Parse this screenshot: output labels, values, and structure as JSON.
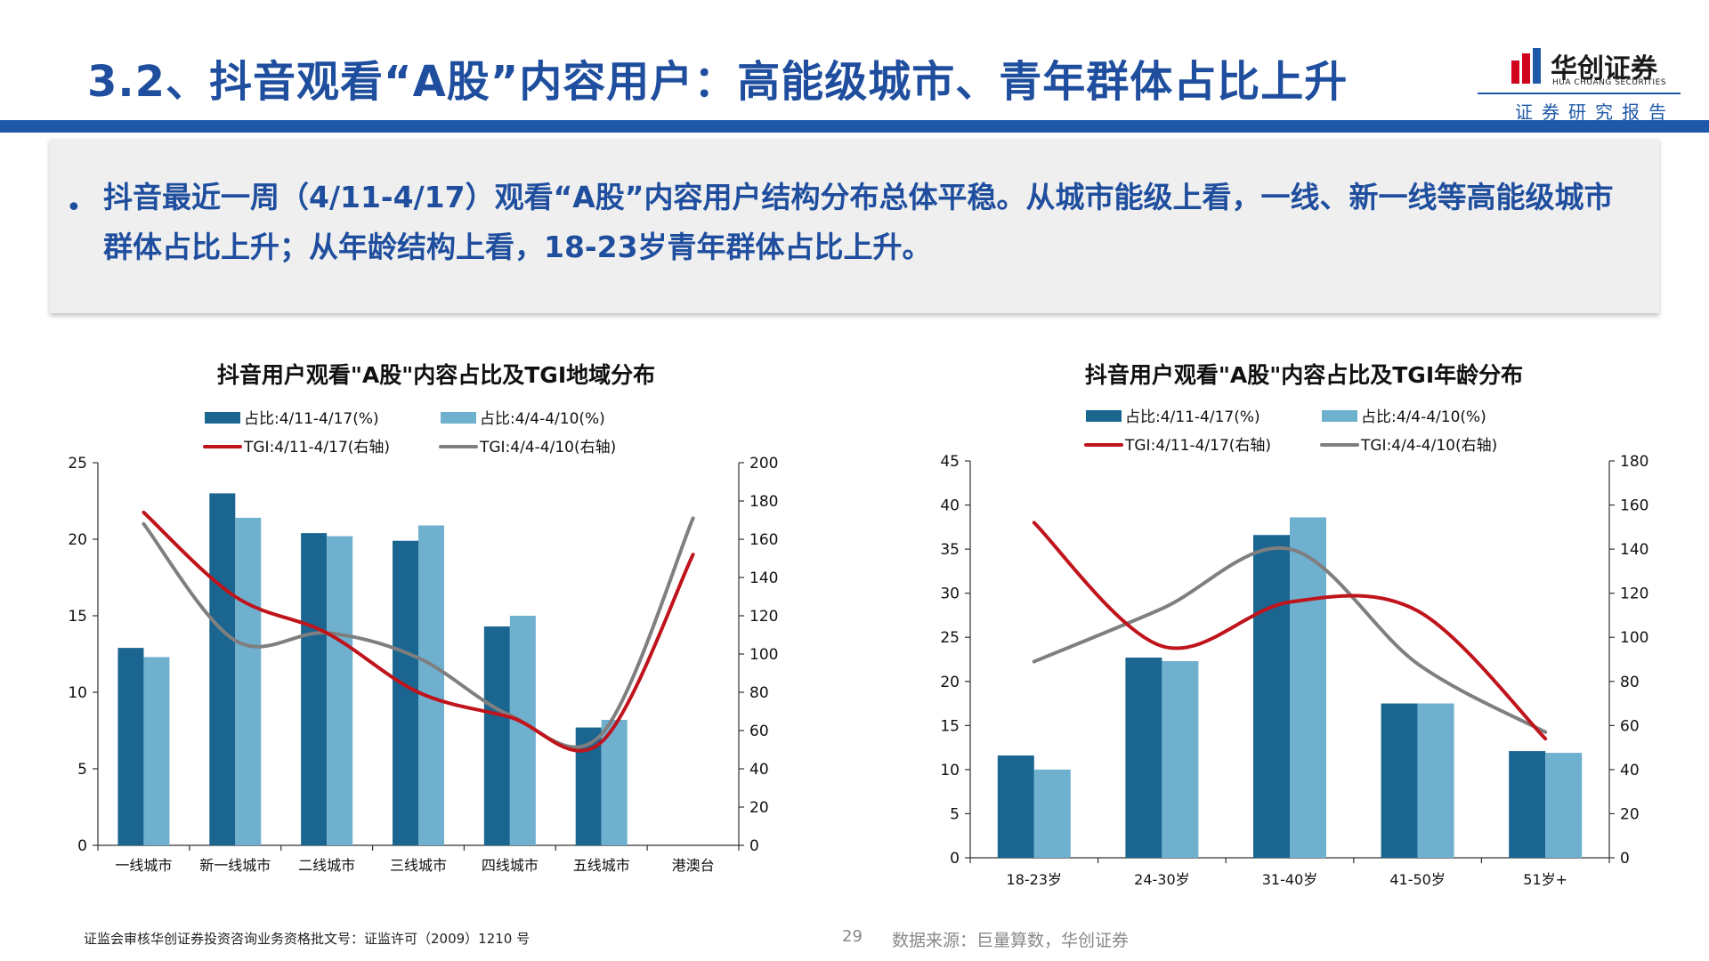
{
  "header": {
    "title": "3.2、抖音观看“A股”内容用户：高能级城市、青年群体占比上升",
    "logo_cn": "华创证券",
    "logo_en": "HUA CHUANG SECURITIES",
    "logo_sub": "证券研究报告"
  },
  "summary": {
    "bullet": "•",
    "text": "抖音最近一周（4/11-4/17）观看“A股”内容用户结构分布总体平稳。从城市能级上看，一线、新一线等高能级城市群体占比上升；从年龄结构上看，18-23岁青年群体占比上升。"
  },
  "colors": {
    "brand": "#1e58a8",
    "title": "#1f4e9e",
    "bar_recent": "#1a6690",
    "bar_prev": "#6fb0cf",
    "line_recent": "#c0141c",
    "line_prev": "#7f7f7f"
  },
  "chart_data": [
    {
      "type": "bar",
      "title": "抖音用户观看\"A股\"内容占比及TGI地域分布",
      "categories": [
        "一线城市",
        "新一线城市",
        "二线城市",
        "三线城市",
        "四线城市",
        "五线城市",
        "港澳台"
      ],
      "series": [
        {
          "name": "占比:4/11-4/17(%)",
          "type": "bar",
          "axis": "left",
          "values": [
            12.9,
            23.0,
            20.4,
            19.9,
            14.3,
            7.7,
            0
          ]
        },
        {
          "name": "占比:4/4-4/10(%)",
          "type": "bar",
          "axis": "left",
          "values": [
            12.3,
            21.4,
            20.2,
            20.9,
            15.0,
            8.2,
            0
          ]
        },
        {
          "name": "TGI:4/11-4/17(右轴)",
          "type": "line",
          "axis": "right",
          "values": [
            174,
            130,
            111,
            80,
            67,
            54,
            152
          ]
        },
        {
          "name": "TGI:4/4-4/10(右轴)",
          "type": "line",
          "axis": "right",
          "values": [
            168,
            107,
            111,
            98,
            68,
            58,
            171
          ]
        }
      ],
      "ylim": [
        0,
        25
      ],
      "yticks": [
        0,
        5,
        10,
        15,
        20,
        25
      ],
      "y2lim": [
        0,
        200
      ],
      "y2ticks": [
        0,
        20,
        40,
        60,
        80,
        100,
        120,
        140,
        160,
        180,
        200
      ],
      "legend": "top"
    },
    {
      "type": "bar",
      "title": "抖音用户观看\"A股\"内容占比及TGI年龄分布",
      "categories": [
        "18-23岁",
        "24-30岁",
        "31-40岁",
        "41-50岁",
        "51岁+"
      ],
      "series": [
        {
          "name": "占比:4/11-4/17(%)",
          "type": "bar",
          "axis": "left",
          "values": [
            11.6,
            22.7,
            36.6,
            17.5,
            12.1
          ]
        },
        {
          "name": "占比:4/4-4/10(%)",
          "type": "bar",
          "axis": "left",
          "values": [
            10.0,
            22.3,
            38.6,
            17.5,
            11.9
          ]
        },
        {
          "name": "TGI:4/11-4/17(右轴)",
          "type": "line",
          "axis": "right",
          "values": [
            152,
            96,
            116,
            112,
            54
          ]
        },
        {
          "name": "TGI:4/4-4/10(右轴)",
          "type": "line",
          "axis": "right",
          "values": [
            89,
            113,
            140,
            88,
            57
          ]
        }
      ],
      "ylim": [
        0,
        45
      ],
      "yticks": [
        0,
        5,
        10,
        15,
        20,
        25,
        30,
        35,
        40,
        45
      ],
      "y2lim": [
        0,
        180
      ],
      "y2ticks": [
        0,
        20,
        40,
        60,
        80,
        100,
        120,
        140,
        160,
        180
      ],
      "legend": "top"
    }
  ],
  "footer": {
    "license": "证监会审核华创证券投资咨询业务资格批文号：证监许可（2009）1210 号",
    "page": "29",
    "source": "数据来源：巨量算数，华创证券"
  }
}
